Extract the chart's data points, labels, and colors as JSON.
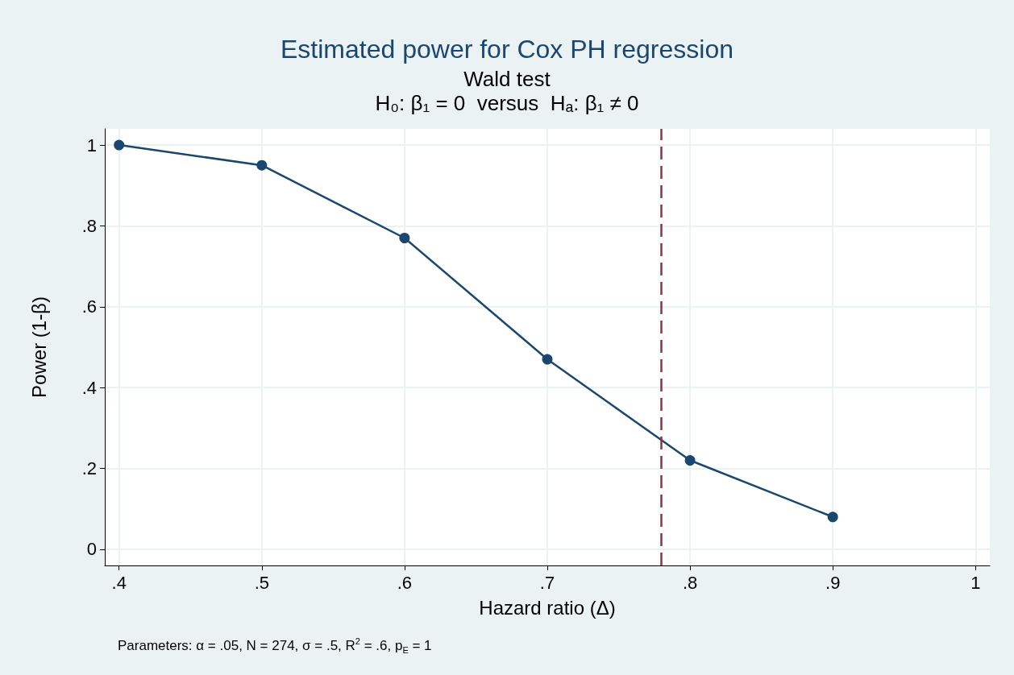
{
  "chart_data": {
    "type": "line",
    "title": "Estimated power for Cox PH regression",
    "subtitle": "Wald test\nH₀: β₁ = 0  versus  Hₐ: β₁ ≠ 0",
    "xlabel": "Hazard ratio (Δ)",
    "ylabel": "Power (1-β)",
    "annotations": [
      "Parameters: α = .05, N = 274, σ = .5, R$^{2}$ = .6, p$_{E}$ = 1"
    ],
    "x": [
      0.4,
      0.5,
      0.6,
      0.7,
      0.8,
      0.9
    ],
    "series": [
      {
        "color": "#1a476f",
        "values": [
          1.0,
          0.95,
          0.77,
          0.47,
          0.22,
          0.08
        ]
      }
    ],
    "xlim": [
      0.39,
      1.01
    ],
    "xticks": [
      {
        "value": 0.4,
        "label": ".4"
      },
      {
        "value": 0.5,
        "label": ".5"
      },
      {
        "value": 0.6,
        "label": ".6"
      },
      {
        "value": 0.7,
        "label": ".7"
      },
      {
        "value": 0.8,
        "label": ".8"
      },
      {
        "value": 0.9,
        "label": ".9"
      },
      1
    ],
    "ylim": [
      -0.04,
      1.04
    ],
    "yticks": [
      0,
      {
        "value": 0.2,
        "label": ".2"
      },
      {
        "value": 0.4,
        "label": ".4"
      },
      {
        "value": 0.6,
        "label": ".6"
      },
      {
        "value": 0.8,
        "label": ".8"
      },
      1
    ],
    "ref_lines": [
      {
        "axis": "x",
        "value": 0.78,
        "color": "#90353b",
        "line_style": "dashed"
      }
    ],
    "grid": true,
    "marker": "circle",
    "line_style": "solid"
  }
}
